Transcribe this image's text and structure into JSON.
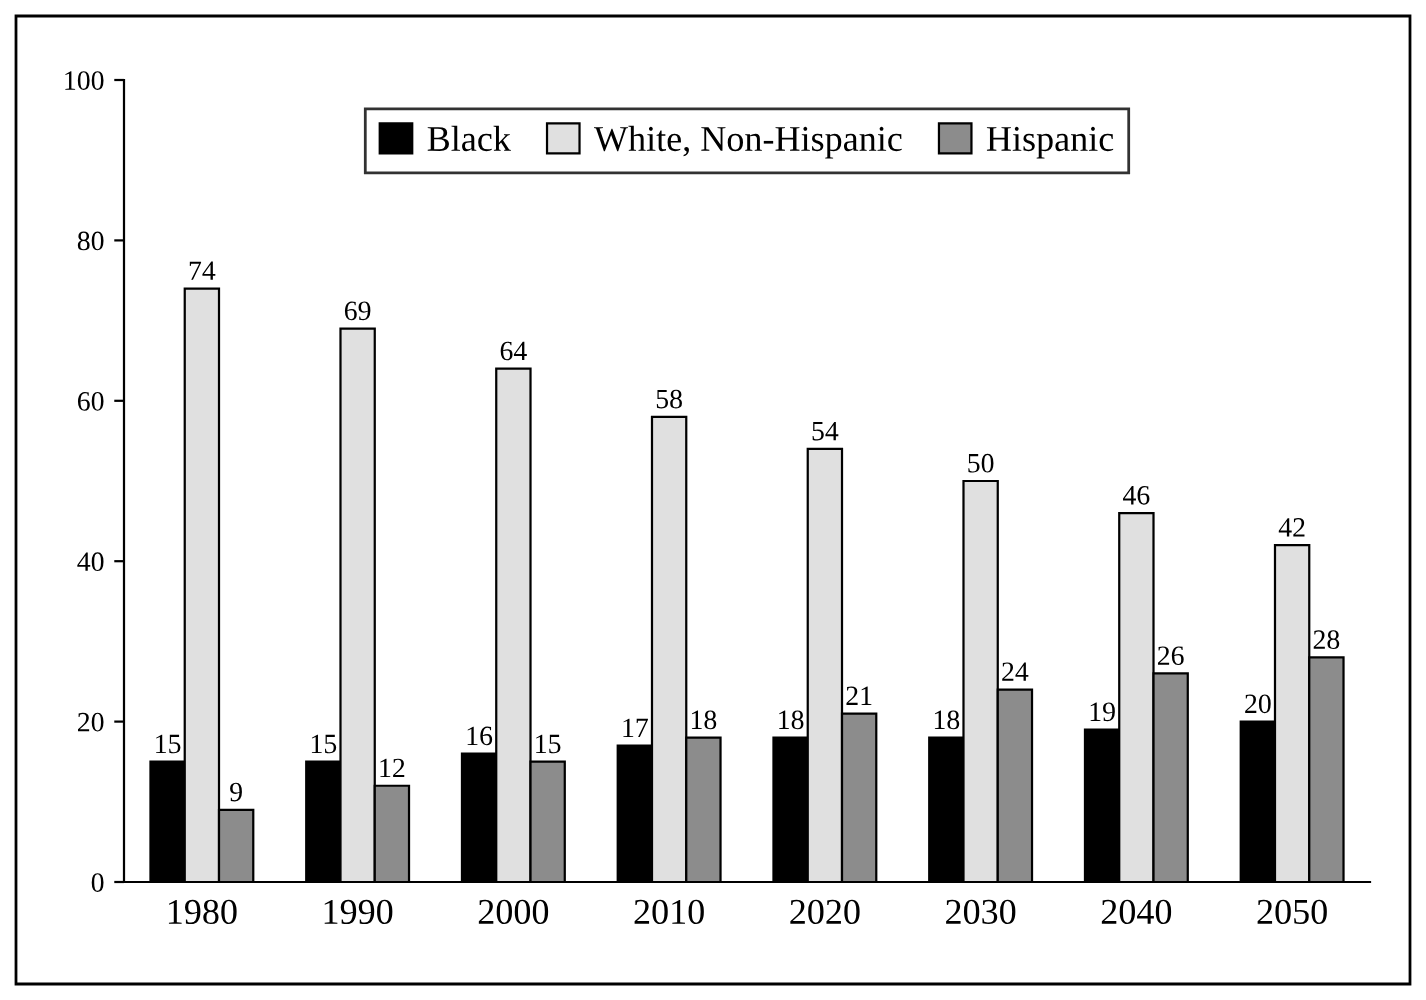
{
  "chart_data": {
    "type": "bar",
    "categories": [
      "1980",
      "1990",
      "2000",
      "2010",
      "2020",
      "2030",
      "2040",
      "2050"
    ],
    "series": [
      {
        "name": "Black",
        "color": "#000000",
        "values": [
          15,
          15,
          16,
          17,
          18,
          18,
          19,
          20
        ]
      },
      {
        "name": "White, Non-Hispanic",
        "color": "#e0e0e0",
        "values": [
          74,
          69,
          64,
          58,
          54,
          50,
          46,
          42
        ]
      },
      {
        "name": "Hispanic",
        "color": "#8c8c8c",
        "values": [
          9,
          12,
          15,
          18,
          21,
          24,
          26,
          28
        ]
      }
    ],
    "ylim": [
      0,
      100
    ],
    "yticks": [
      0,
      20,
      40,
      60,
      80,
      100
    ],
    "data_labels": true,
    "legend": "top",
    "grid": false
  }
}
